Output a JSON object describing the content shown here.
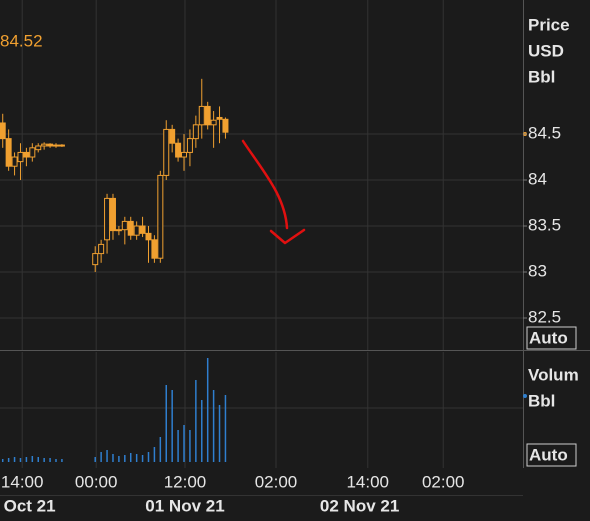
{
  "chart_data": [
    {
      "type": "candlestick",
      "last_price_label": "84.52",
      "axis_labels": [
        "Price",
        "USD",
        "Bbl"
      ],
      "scale_mode": "Auto",
      "color": "#f0a030",
      "x": [
        0.3,
        1.1,
        1.9,
        2.7,
        3.5,
        4.3,
        5.1,
        5.9,
        6.7,
        7.5,
        8.3,
        12.8,
        13.6,
        14.4,
        15.2,
        16.0,
        16.8,
        17.6,
        18.4,
        19.2,
        20.0,
        20.8,
        21.6,
        22.4,
        23.2,
        24.0,
        24.8,
        25.6,
        26.4,
        27.2,
        28.0,
        28.8,
        29.6,
        30.4
      ],
      "open": [
        84.62,
        84.45,
        84.15,
        84.2,
        84.3,
        84.25,
        84.33,
        84.37,
        84.39,
        84.37,
        84.38,
        83.08,
        83.2,
        83.35,
        83.8,
        83.45,
        83.46,
        83.55,
        83.4,
        83.5,
        83.42,
        83.35,
        83.15,
        84.05,
        84.55,
        84.4,
        84.25,
        84.3,
        84.45,
        84.6,
        84.8,
        84.6,
        84.68,
        84.66
      ],
      "high": [
        84.72,
        84.55,
        84.3,
        84.4,
        84.35,
        84.4,
        84.4,
        84.41,
        84.4,
        84.4,
        84.39,
        83.28,
        83.35,
        83.85,
        83.85,
        83.5,
        83.6,
        83.6,
        83.55,
        83.6,
        83.5,
        83.4,
        84.1,
        84.65,
        84.6,
        84.45,
        84.5,
        84.55,
        84.7,
        85.1,
        84.85,
        84.75,
        84.8,
        84.68
      ],
      "low": [
        84.35,
        84.1,
        84.05,
        84.0,
        84.15,
        84.2,
        84.3,
        84.33,
        84.35,
        84.35,
        84.36,
        83.0,
        83.1,
        83.2,
        83.35,
        83.4,
        83.3,
        83.35,
        83.35,
        83.38,
        83.1,
        83.1,
        83.1,
        84.0,
        84.3,
        84.2,
        84.1,
        84.15,
        84.35,
        84.45,
        84.55,
        84.35,
        84.4,
        84.45
      ],
      "close": [
        84.45,
        84.15,
        84.25,
        84.3,
        84.25,
        84.35,
        84.37,
        84.39,
        84.37,
        84.38,
        84.37,
        83.2,
        83.3,
        83.8,
        83.45,
        83.46,
        83.55,
        83.4,
        83.5,
        83.42,
        83.35,
        83.15,
        84.05,
        84.55,
        84.4,
        84.25,
        84.3,
        84.45,
        84.6,
        84.8,
        84.6,
        84.65,
        84.66,
        84.52
      ],
      "xlim": [
        0,
        70.68
      ],
      "ylim": [
        82.152,
        85.957
      ],
      "yticks": [
        84.5,
        84,
        83.5,
        83,
        82.5
      ],
      "grid": true
    },
    {
      "type": "bar",
      "axis_labels": [
        "Volum",
        "Bbl"
      ],
      "scale_mode": "Auto",
      "color": "#2f7fcf",
      "x": [
        0.3,
        1.1,
        1.9,
        2.7,
        3.5,
        4.3,
        5.1,
        5.9,
        6.7,
        7.5,
        8.3,
        12.8,
        13.6,
        14.4,
        15.2,
        16.0,
        16.8,
        17.6,
        18.4,
        19.2,
        20.0,
        20.8,
        21.6,
        22.4,
        23.2,
        24.0,
        24.8,
        25.6,
        26.4,
        27.2,
        28.0,
        28.8,
        29.6,
        30.4
      ],
      "values": [
        3,
        4,
        5,
        4,
        5,
        6,
        5,
        4,
        4,
        3,
        3,
        5,
        10,
        12,
        8,
        6,
        7,
        9,
        8,
        7,
        10,
        15,
        25,
        77,
        72,
        32,
        37,
        32,
        82,
        62,
        104,
        72,
        57,
        67
      ],
      "xlim": [
        0,
        70.68
      ],
      "ylim": [
        0,
        110
      ],
      "xticks": [
        {
          "value": 3,
          "label": "14:00"
        },
        {
          "value": 13,
          "label": "00:00"
        },
        {
          "value": 25,
          "label": "12:00"
        },
        {
          "value": 37.3,
          "label": "02:00"
        },
        {
          "value": 49.7,
          "label": "14:00"
        },
        {
          "value": 59.9,
          "label": "02:00"
        }
      ],
      "date_ticks": [
        {
          "value": 4,
          "label": "Oct 21"
        },
        {
          "value": 25,
          "label": "01 Nov 21"
        },
        {
          "value": 48.6,
          "label": "02 Nov 21"
        }
      ],
      "grid": true
    }
  ]
}
